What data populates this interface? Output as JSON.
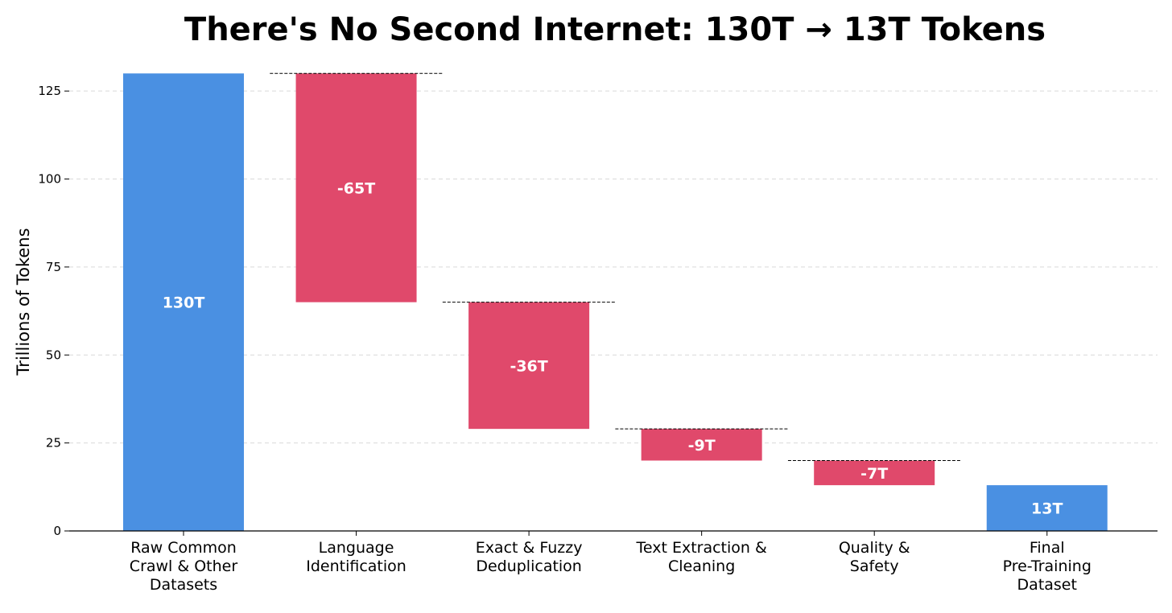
{
  "chart_data": {
    "type": "bar",
    "subtype": "waterfall",
    "title": "There's No Second Internet: 130T → 13T Tokens",
    "ylabel": "Trillions of Tokens",
    "xlabel": "",
    "ylim": [
      0,
      130
    ],
    "yticks": [
      0,
      25,
      50,
      75,
      100,
      125
    ],
    "grid": "horizontal dashed",
    "categories": [
      [
        "Raw Common",
        "Crawl & Other",
        "Datasets"
      ],
      [
        "Language",
        "Identification"
      ],
      [
        "Exact & Fuzzy",
        "Deduplication"
      ],
      [
        "Text Extraction &",
        "Cleaning"
      ],
      [
        "Quality &",
        "Safety"
      ],
      [
        "Final",
        "Pre-Training",
        "Dataset"
      ]
    ],
    "bars": [
      {
        "kind": "total",
        "start": 0,
        "end": 130,
        "label": "130T"
      },
      {
        "kind": "decrease",
        "start": 130,
        "end": 65,
        "label": "-65T"
      },
      {
        "kind": "decrease",
        "start": 65,
        "end": 29,
        "label": "-36T"
      },
      {
        "kind": "decrease",
        "start": 29,
        "end": 20,
        "label": "-9T"
      },
      {
        "kind": "decrease",
        "start": 20,
        "end": 13,
        "label": "-7T"
      },
      {
        "kind": "total",
        "start": 0,
        "end": 13,
        "label": "13T"
      }
    ],
    "colors": {
      "total": "#4a90e2",
      "decrease": "#e0496b",
      "grid": "#d9d9d9",
      "connector": "#000000"
    }
  }
}
